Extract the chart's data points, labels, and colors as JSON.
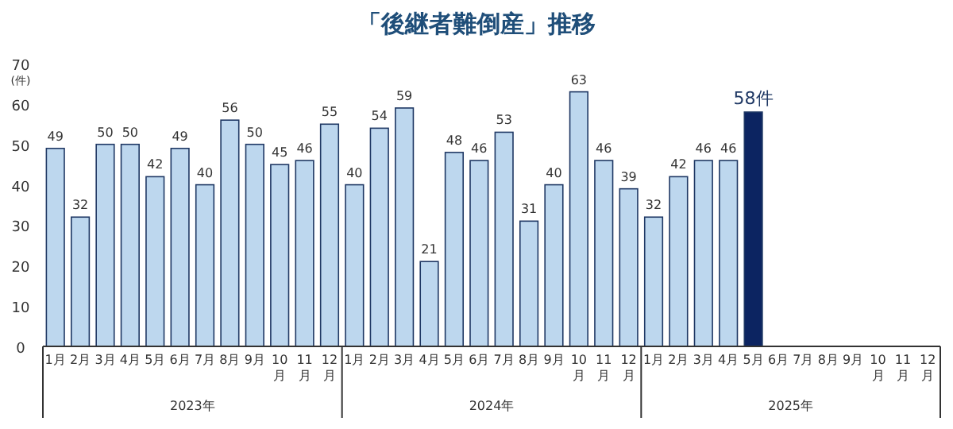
{
  "chart_data": {
    "type": "bar",
    "title": "「後継者難倒産」推移",
    "ylabel": "(件)",
    "categories": [
      "1月",
      "2月",
      "3月",
      "4月",
      "5月",
      "6月",
      "7月",
      "8月",
      "9月",
      "10月",
      "11月",
      "12月",
      "1月",
      "2月",
      "3月",
      "4月",
      "5月",
      "6月",
      "7月",
      "8月",
      "9月",
      "10月",
      "11月",
      "12月",
      "1月",
      "2月",
      "3月",
      "4月",
      "5月",
      "6月",
      "7月",
      "8月",
      "9月",
      "10月",
      "11月",
      "12月"
    ],
    "values": [
      49,
      32,
      50,
      50,
      42,
      49,
      40,
      56,
      50,
      45,
      46,
      55,
      40,
      54,
      59,
      21,
      48,
      46,
      53,
      31,
      40,
      63,
      46,
      39,
      32,
      42,
      46,
      46,
      58,
      null,
      null,
      null,
      null,
      null,
      null,
      null
    ],
    "colors": [
      "#bdd7ee",
      "#bdd7ee",
      "#bdd7ee",
      "#bdd7ee",
      "#bdd7ee",
      "#bdd7ee",
      "#bdd7ee",
      "#bdd7ee",
      "#bdd7ee",
      "#bdd7ee",
      "#bdd7ee",
      "#bdd7ee",
      "#bdd7ee",
      "#bdd7ee",
      "#bdd7ee",
      "#bdd7ee",
      "#bdd7ee",
      "#bdd7ee",
      "#bdd7ee",
      "#bdd7ee",
      "#bdd7ee",
      "#bdd7ee",
      "#bdd7ee",
      "#bdd7ee",
      "#bdd7ee",
      "#bdd7ee",
      "#bdd7ee",
      "#bdd7ee",
      "#0c2461",
      null,
      null,
      null,
      null,
      null,
      null,
      null
    ],
    "value_labels": [
      "49",
      "32",
      "50",
      "50",
      "42",
      "49",
      "40",
      "56",
      "50",
      "45",
      "46",
      "55",
      "40",
      "54",
      "59",
      "21",
      "48",
      "46",
      "53",
      "31",
      "40",
      "63",
      "46",
      "39",
      "32",
      "42",
      "46",
      "46",
      "58件",
      null,
      null,
      null,
      null,
      null,
      null,
      null
    ],
    "ylim": [
      0,
      70
    ],
    "yticks": [
      0,
      10,
      20,
      30,
      40,
      50,
      60,
      70
    ],
    "grid": false,
    "annotations": [
      "2023年",
      "2024年",
      "2025年"
    ]
  }
}
